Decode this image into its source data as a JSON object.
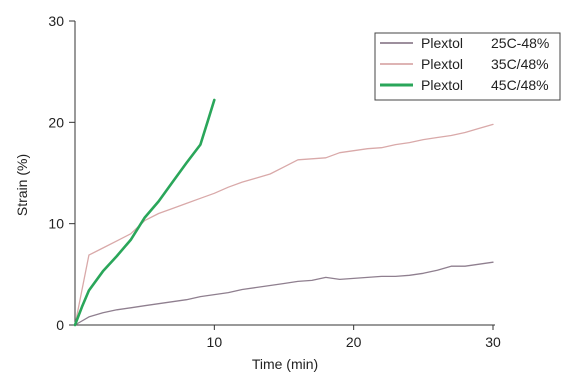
{
  "chart_data": {
    "type": "line",
    "xlabel": "Time (min)",
    "ylabel": "Strain (%)",
    "xlim": [
      0,
      30
    ],
    "ylim": [
      0,
      30
    ],
    "x_ticks": [
      10,
      20,
      30
    ],
    "y_ticks": [
      0,
      10,
      20,
      30
    ],
    "grid": false,
    "legend_position": "top-right",
    "series": [
      {
        "name": "Plextol 25C-48%",
        "legend_name": "Plextol",
        "legend_condition": "25C-48%",
        "color": "#8f7f8f",
        "points": [
          [
            0,
            0
          ],
          [
            1,
            0.8
          ],
          [
            2,
            1.2
          ],
          [
            3,
            1.5
          ],
          [
            4,
            1.7
          ],
          [
            5,
            1.9
          ],
          [
            6,
            2.1
          ],
          [
            7,
            2.3
          ],
          [
            8,
            2.5
          ],
          [
            9,
            2.8
          ],
          [
            10,
            3.0
          ],
          [
            11,
            3.2
          ],
          [
            12,
            3.5
          ],
          [
            13,
            3.7
          ],
          [
            14,
            3.9
          ],
          [
            15,
            4.1
          ],
          [
            16,
            4.3
          ],
          [
            17,
            4.4
          ],
          [
            18,
            4.7
          ],
          [
            19,
            4.5
          ],
          [
            20,
            4.6
          ],
          [
            21,
            4.7
          ],
          [
            22,
            4.8
          ],
          [
            23,
            4.8
          ],
          [
            24,
            4.9
          ],
          [
            25,
            5.1
          ],
          [
            26,
            5.4
          ],
          [
            27,
            5.8
          ],
          [
            28,
            5.8
          ],
          [
            29,
            6.0
          ],
          [
            30,
            6.2
          ]
        ]
      },
      {
        "name": "Plextol 35C/48%",
        "legend_name": "Plextol",
        "legend_condition": "35C/48%",
        "color": "#d9a9a9",
        "points": [
          [
            0,
            0
          ],
          [
            1,
            6.9
          ],
          [
            2,
            7.6
          ],
          [
            3,
            8.3
          ],
          [
            4,
            9.0
          ],
          [
            5,
            10.3
          ],
          [
            6,
            11.0
          ],
          [
            7,
            11.5
          ],
          [
            8,
            12.0
          ],
          [
            9,
            12.5
          ],
          [
            10,
            13.0
          ],
          [
            11,
            13.6
          ],
          [
            12,
            14.1
          ],
          [
            13,
            14.5
          ],
          [
            14,
            14.9
          ],
          [
            15,
            15.6
          ],
          [
            16,
            16.3
          ],
          [
            17,
            16.4
          ],
          [
            18,
            16.5
          ],
          [
            19,
            17.0
          ],
          [
            20,
            17.2
          ],
          [
            21,
            17.4
          ],
          [
            22,
            17.5
          ],
          [
            23,
            17.8
          ],
          [
            24,
            18.0
          ],
          [
            25,
            18.3
          ],
          [
            26,
            18.5
          ],
          [
            27,
            18.7
          ],
          [
            28,
            19.0
          ],
          [
            29,
            19.4
          ],
          [
            30,
            19.8
          ]
        ]
      },
      {
        "name": "Plextol 45C/48%",
        "legend_name": "Plextol",
        "legend_condition": "45C/48%",
        "color": "#2aa65a",
        "points": [
          [
            0,
            0
          ],
          [
            0.5,
            1.8
          ],
          [
            1,
            3.4
          ],
          [
            2,
            5.3
          ],
          [
            3,
            6.8
          ],
          [
            4,
            8.4
          ],
          [
            5,
            10.6
          ],
          [
            6,
            12.2
          ],
          [
            7,
            14.1
          ],
          [
            8,
            16.0
          ],
          [
            9,
            17.8
          ],
          [
            9.5,
            20.0
          ],
          [
            10,
            22.2
          ]
        ]
      }
    ]
  }
}
